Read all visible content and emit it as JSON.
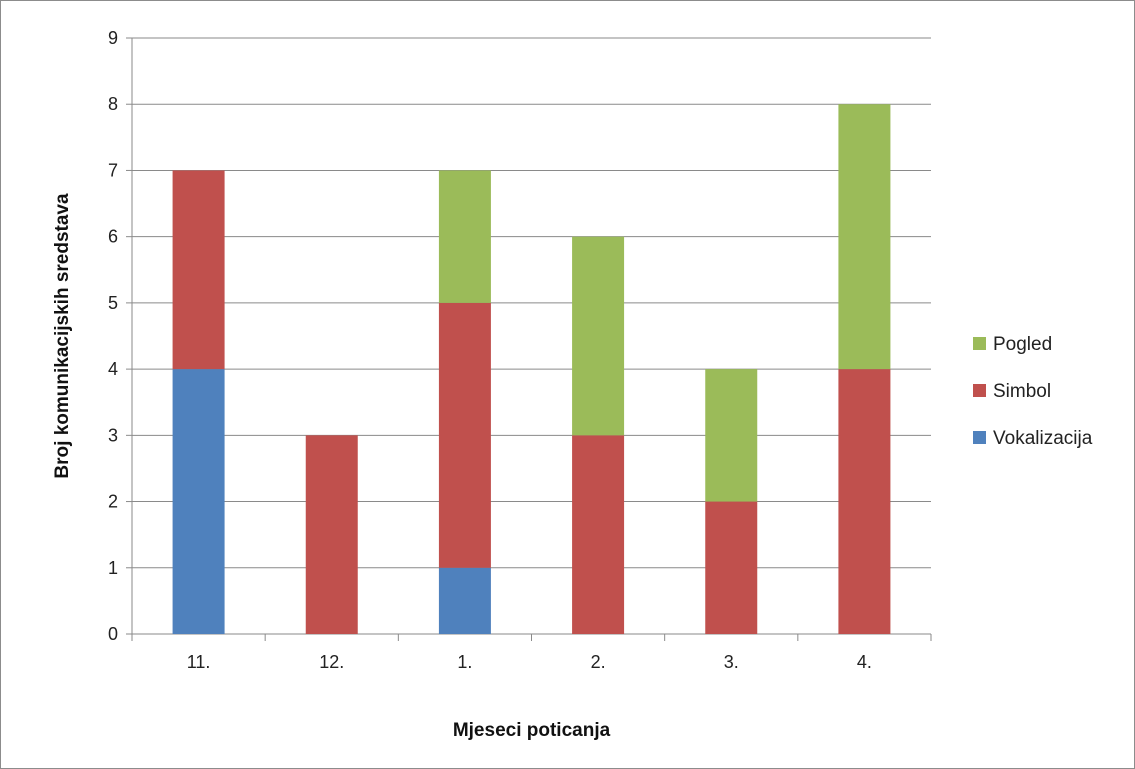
{
  "chart_data": {
    "type": "bar",
    "stacked": true,
    "categories": [
      "11.",
      "12.",
      "1.",
      "2.",
      "3.",
      "4."
    ],
    "series": [
      {
        "name": "Vokalizacija",
        "color": "#4f81bd",
        "values": [
          4,
          0,
          1,
          0,
          0,
          0
        ]
      },
      {
        "name": "Simbol",
        "color": "#c0504d",
        "values": [
          3,
          3,
          4,
          3,
          2,
          4
        ]
      },
      {
        "name": "Pogled",
        "color": "#9bbb59",
        "values": [
          0,
          0,
          2,
          3,
          2,
          4
        ]
      }
    ],
    "xlabel": "Mjeseci poticanja",
    "ylabel": "Broj komunikacijskih sredstava",
    "ylim": [
      0,
      9
    ],
    "yticks": [
      "0",
      "1",
      "2",
      "3",
      "4",
      "5",
      "6",
      "7",
      "8",
      "9"
    ],
    "grid": true,
    "legend_position": "right",
    "legend_order": [
      "Pogled",
      "Simbol",
      "Vokalizacija"
    ]
  }
}
